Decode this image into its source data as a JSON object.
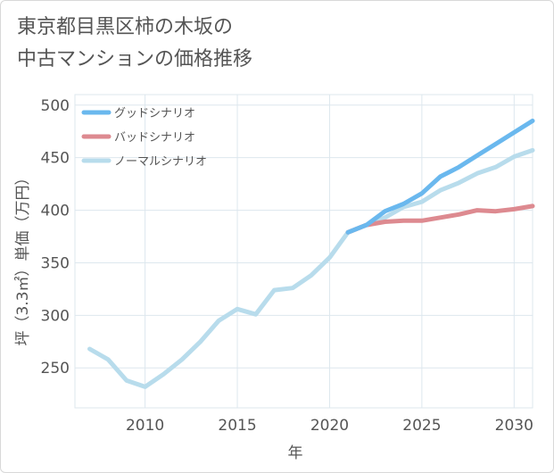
{
  "title_line1": "東京都目黒区柿の木坂の",
  "title_line2": "中古マンションの価格推移",
  "chart_data": {
    "type": "line",
    "xlabel": "年",
    "ylabel": "坪（3.3㎡）単価（万円）",
    "xlim": [
      2006.2,
      2031
    ],
    "ylim": [
      212,
      510
    ],
    "xticks": [
      2010,
      2015,
      2020,
      2025,
      2030
    ],
    "yticks": [
      250,
      300,
      350,
      400,
      450,
      500
    ],
    "grid": true,
    "legend_position": "top-left",
    "series": [
      {
        "name": "グッドシナリオ",
        "color": "#6ab8ee",
        "x": [
          2021,
          2022,
          2023,
          2024,
          2025,
          2026,
          2027,
          2028,
          2029,
          2030,
          2031
        ],
        "y": [
          379,
          386,
          399,
          406,
          416,
          432,
          441,
          452,
          463,
          474,
          485
        ]
      },
      {
        "name": "バッドシナリオ",
        "color": "#dd8a90",
        "x": [
          2021,
          2022,
          2023,
          2024,
          2025,
          2026,
          2027,
          2028,
          2029,
          2030,
          2031
        ],
        "y": [
          379,
          386,
          389,
          390,
          390,
          393,
          396,
          400,
          399,
          401,
          404
        ]
      },
      {
        "name": "ノーマルシナリオ",
        "color": "#b8dcec",
        "x": [
          2007,
          2008,
          2009,
          2010,
          2011,
          2012,
          2013,
          2014,
          2015,
          2016,
          2017,
          2018,
          2019,
          2020,
          2021,
          2022,
          2023,
          2024,
          2025,
          2026,
          2027,
          2028,
          2029,
          2030,
          2031
        ],
        "y": [
          268,
          258,
          238,
          232,
          244,
          258,
          275,
          295,
          306,
          301,
          324,
          326,
          338,
          355,
          379,
          386,
          393,
          403,
          408,
          419,
          426,
          435,
          441,
          451,
          457
        ]
      }
    ]
  }
}
